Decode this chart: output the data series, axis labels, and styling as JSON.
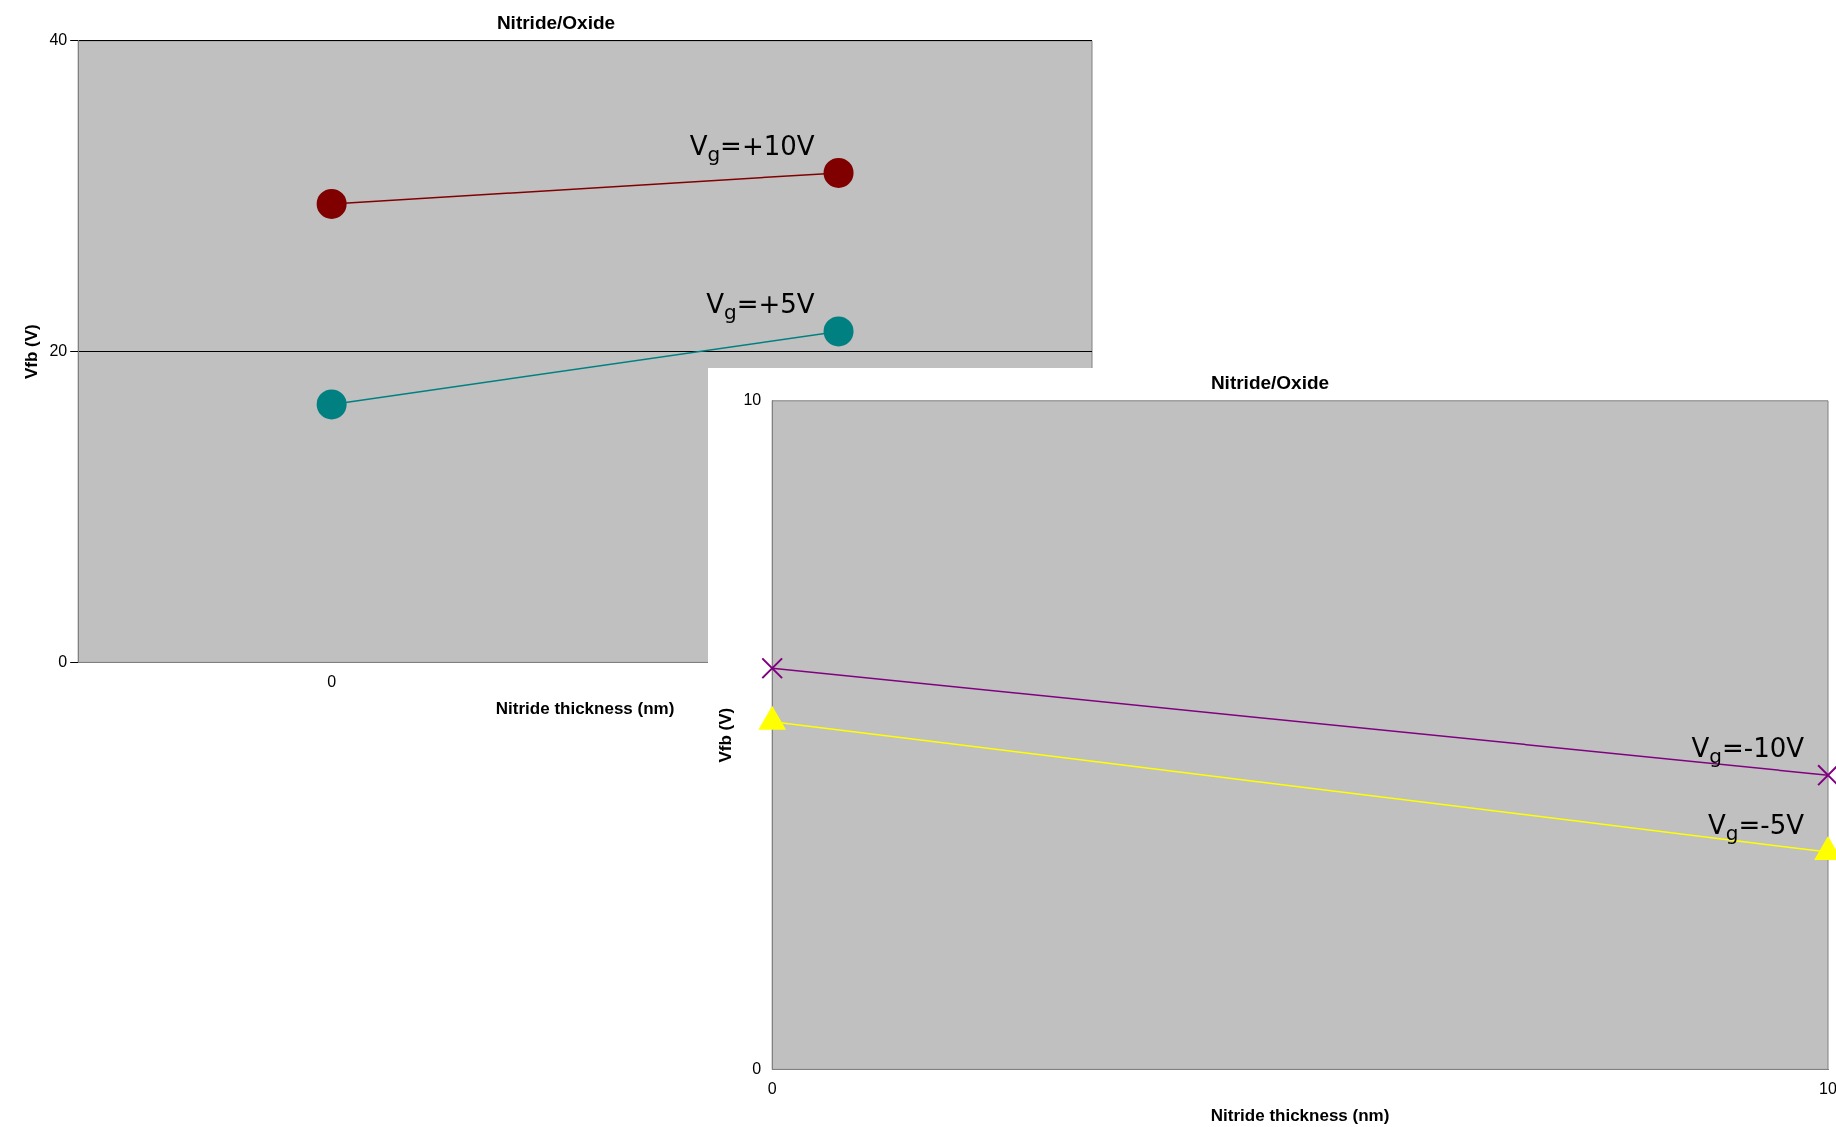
{
  "chart_data": [
    {
      "type": "line",
      "title": "Nitride/Oxide",
      "xlabel": "Nitride thickness (nm)",
      "ylabel": "Vfb (V)",
      "categories": [
        "0",
        null
      ],
      "series": [
        {
          "name": "V$_{g}$=+10V",
          "color": "#800000",
          "marker": "circle",
          "values": [
            29.5,
            31.5
          ]
        },
        {
          "name": "V$_{g}$=+5V",
          "color": "#008080",
          "marker": "circle",
          "values": [
            16.6,
            21.3
          ]
        }
      ],
      "ylim": [
        0,
        40
      ],
      "yticks": [
        0,
        20,
        40
      ],
      "grid": "y",
      "legend": false
    },
    {
      "type": "line",
      "title": "Nitride/Oxide",
      "xlabel": "Nitride thickness (nm)",
      "ylabel": "Vfb (V)",
      "x": [
        0,
        10
      ],
      "series": [
        {
          "name": "V$_{g}$=-10V",
          "color": "#800080",
          "marker": "cross",
          "values": [
            6.0,
            4.4
          ]
        },
        {
          "name": "V$_{g}$=-5V",
          "color": "#ffff00",
          "marker": "triangle",
          "values": [
            5.2,
            3.25
          ]
        }
      ],
      "xlim": [
        0,
        10
      ],
      "xticks": [
        0,
        10
      ],
      "ylim": [
        0,
        10
      ],
      "yticks": [
        0,
        10
      ],
      "grid": false,
      "legend": false
    }
  ]
}
